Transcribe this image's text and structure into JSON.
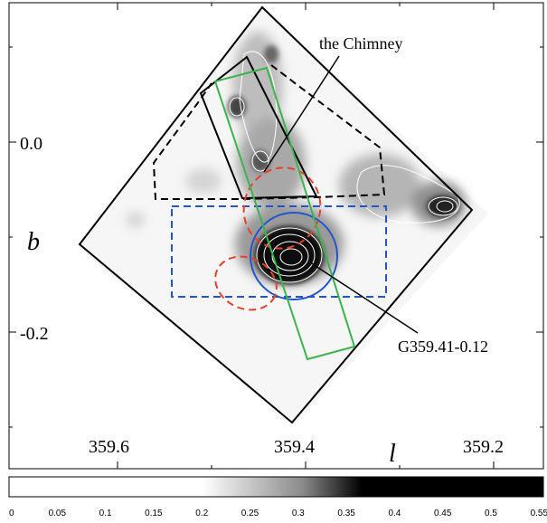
{
  "axes": {
    "x_symbol": "l",
    "y_symbol": "b",
    "x_ticks": [
      "359.6",
      "359.4",
      "359.2"
    ],
    "y_ticks": [
      "0.0",
      "-0.2"
    ]
  },
  "annotations": {
    "chimney": "the Chimney",
    "source": "G359.41-0.12"
  },
  "colorbar": {
    "ticks": [
      "0",
      "0.05",
      "0.1",
      "0.15",
      "0.2",
      "0.25",
      "0.3",
      "0.35",
      "0.4",
      "0.45",
      "0.5",
      "0.55"
    ]
  },
  "colors": {
    "outline": "#000000",
    "blue_region": "#2255cc",
    "red_region": "#e8402a",
    "green_region": "#3cb44b",
    "contour": "#ffffff"
  }
}
